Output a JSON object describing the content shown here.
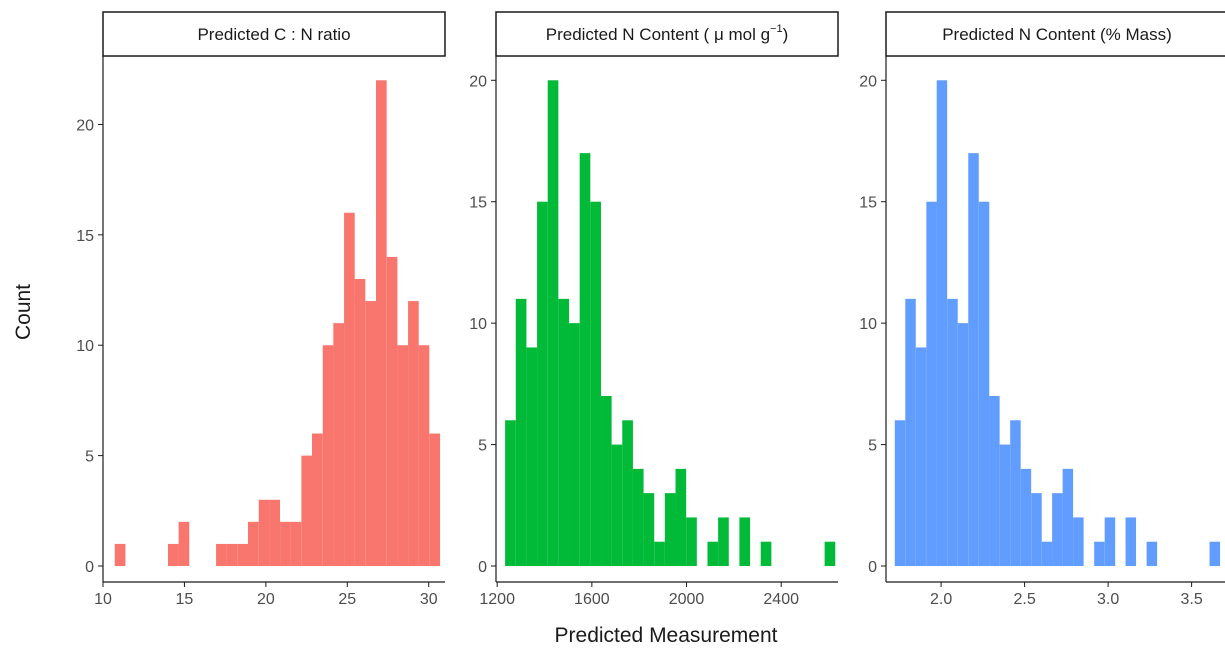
{
  "xlabel": "Predicted Measurement",
  "ylabel": "Count",
  "colors": {
    "panel_strip_border": "#1a1a1a",
    "axis": "#1a1a1a",
    "tick_text": "#4d4d4d"
  },
  "chart_data": [
    {
      "type": "bar",
      "title": "Predicted C : N ratio",
      "color": "#F8766D",
      "xlim": [
        10,
        31
      ],
      "xticks": [
        10,
        15,
        20,
        25,
        30
      ],
      "xtick_labels": [
        "10",
        "15",
        "20",
        "25",
        "30"
      ],
      "ylim": [
        0,
        22
      ],
      "yticks": [
        0,
        5,
        10,
        15,
        20
      ],
      "bin_width": 0.655,
      "x": [
        11.05,
        14.32,
        14.97,
        17.27,
        17.92,
        18.58,
        19.23,
        19.89,
        20.54,
        21.2,
        21.85,
        22.51,
        23.16,
        23.82,
        24.47,
        25.13,
        25.78,
        26.44,
        27.09,
        27.75,
        28.4,
        29.06,
        29.71,
        30.37
      ],
      "values": [
        1,
        1,
        2,
        1,
        1,
        1,
        2,
        3,
        3,
        2,
        2,
        5,
        6,
        10,
        11,
        16,
        13,
        12,
        22,
        14,
        10,
        12,
        10,
        6
      ]
    },
    {
      "type": "bar",
      "title": "Predicted N Content ( μ mol g⁻¹)",
      "title_main": "Predicted N Content ( μ mol g",
      "title_sup": "−1",
      "title_end": ")",
      "color": "#00BA38",
      "xlim": [
        1195,
        2640
      ],
      "xticks": [
        1200,
        1600,
        2000,
        2400
      ],
      "xtick_labels": [
        "1200",
        "1600",
        "2000",
        "2400"
      ],
      "ylim": [
        0,
        20
      ],
      "yticks": [
        0,
        5,
        10,
        15,
        20
      ],
      "bin_width": 45,
      "x": [
        1256,
        1301,
        1346,
        1391,
        1436,
        1481,
        1526,
        1571,
        1616,
        1661,
        1706,
        1751,
        1796,
        1841,
        1886,
        1931,
        1976,
        2021,
        2111,
        2156,
        2246,
        2336,
        2606
      ],
      "values": [
        6,
        11,
        9,
        15,
        20,
        11,
        10,
        17,
        15,
        7,
        5,
        6,
        4,
        3,
        1,
        3,
        4,
        2,
        1,
        2,
        2,
        1,
        1
      ]
    },
    {
      "type": "bar",
      "title": "Predicted N Content (% Mass)",
      "color": "#619CFF",
      "xlim": [
        1.67,
        3.7
      ],
      "xticks": [
        2.0,
        2.5,
        3.0,
        3.5
      ],
      "xtick_labels": [
        "2.0",
        "2.5",
        "3.0",
        "3.5"
      ],
      "ylim": [
        0,
        20
      ],
      "yticks": [
        0,
        5,
        10,
        15,
        20
      ],
      "bin_width": 0.0628,
      "x": [
        1.754,
        1.817,
        1.88,
        1.943,
        2.005,
        2.068,
        2.131,
        2.194,
        2.257,
        2.319,
        2.382,
        2.445,
        2.508,
        2.571,
        2.634,
        2.696,
        2.759,
        2.822,
        2.948,
        3.011,
        3.136,
        3.262,
        3.639
      ],
      "values": [
        6,
        11,
        9,
        15,
        20,
        11,
        10,
        17,
        15,
        7,
        5,
        6,
        4,
        3,
        1,
        3,
        4,
        2,
        1,
        2,
        2,
        1,
        1
      ]
    }
  ]
}
